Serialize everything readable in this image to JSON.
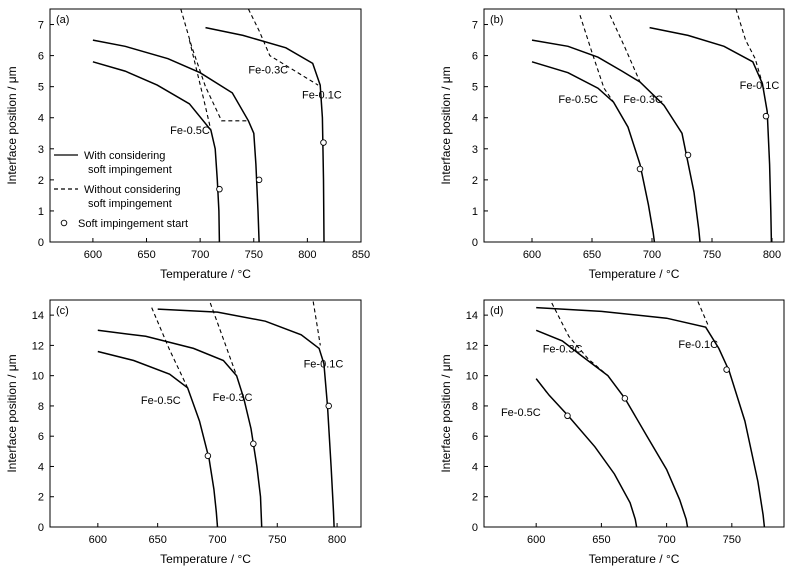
{
  "figure": {
    "background": "#ffffff",
    "line_color": "#000000"
  },
  "chart_data": [
    {
      "type": "line",
      "panel_label": "(a)",
      "xlabel": "Temperature / °C",
      "ylabel": "Interface position / μm",
      "xlim": [
        560,
        850
      ],
      "ylim": [
        0,
        7.5
      ],
      "xticks": [
        600,
        650,
        700,
        750,
        800,
        850
      ],
      "yticks": [
        0,
        1,
        2,
        3,
        4,
        5,
        6,
        7
      ],
      "legend": {
        "placement": "left",
        "entries": [
          {
            "label_lines": [
              "With considering",
              "soft impingement"
            ],
            "style": "solid"
          },
          {
            "label_lines": [
              "Without considering",
              "soft impingement"
            ],
            "style": "dashed"
          },
          {
            "label_lines": [
              "Soft impingement start"
            ],
            "style": "circle"
          }
        ]
      },
      "series": [
        {
          "name": "Fe-0.5C",
          "solid": [
            [
              600,
              5.8
            ],
            [
              630,
              5.5
            ],
            [
              660,
              5.05
            ],
            [
              690,
              4.45
            ],
            [
              710,
              3.6
            ],
            [
              714,
              3.0
            ],
            [
              716,
              2.0
            ],
            [
              717.5,
              1.0
            ],
            [
              718,
              0
            ]
          ],
          "dashed": [
            [
              690,
              6.5
            ],
            [
              697,
              5.5
            ],
            [
              704,
              4.5
            ],
            [
              710,
              3.6
            ]
          ],
          "marker": [
            718,
            1.7
          ],
          "label": {
            "text": "Fe-0.5C",
            "at": [
              672,
              3.6
            ]
          }
        },
        {
          "name": "Fe-0.3C",
          "solid": [
            [
              600,
              6.5
            ],
            [
              630,
              6.3
            ],
            [
              670,
              5.9
            ],
            [
              700,
              5.45
            ],
            [
              730,
              4.8
            ],
            [
              745,
              3.9
            ],
            [
              750,
              3.5
            ],
            [
              752,
              2.5
            ],
            [
              754,
              1.0
            ],
            [
              755,
              0
            ]
          ],
          "dashed": [
            [
              682,
              7.5
            ],
            [
              692,
              6.3
            ],
            [
              705,
              5.0
            ],
            [
              720,
              3.9
            ],
            [
              745,
              3.9
            ]
          ],
          "marker": [
            755,
            2.0
          ],
          "label": {
            "text": "Fe-0.3C",
            "at": [
              745,
              5.55
            ]
          }
        },
        {
          "name": "Fe-0.1C",
          "solid": [
            [
              705,
              6.9
            ],
            [
              740,
              6.65
            ],
            [
              780,
              6.25
            ],
            [
              805,
              5.75
            ],
            [
              812,
              5.05
            ],
            [
              814,
              4.0
            ],
            [
              815,
              2.0
            ],
            [
              815.5,
              0
            ]
          ],
          "dashed": [
            [
              745,
              7.5
            ],
            [
              755,
              6.8
            ],
            [
              765,
              6.0
            ],
            [
              810,
              5.05
            ]
          ],
          "marker": [
            815,
            3.2
          ],
          "label": {
            "text": "Fe-0.1C",
            "at": [
              795,
              4.75
            ]
          }
        }
      ]
    },
    {
      "type": "line",
      "panel_label": "(b)",
      "xlabel": "Temperature / °C",
      "ylabel": "Interface position / μm",
      "xlim": [
        560,
        810
      ],
      "ylim": [
        0,
        7.5
      ],
      "xticks": [
        600,
        650,
        700,
        750,
        800
      ],
      "yticks": [
        0,
        1,
        2,
        3,
        4,
        5,
        6,
        7
      ],
      "series": [
        {
          "name": "Fe-0.5C",
          "solid": [
            [
              600,
              5.8
            ],
            [
              630,
              5.45
            ],
            [
              655,
              4.95
            ],
            [
              668,
              4.5
            ],
            [
              680,
              3.7
            ],
            [
              690,
              2.5
            ],
            [
              697,
              1.2
            ],
            [
              701,
              0.3
            ],
            [
              702,
              0
            ]
          ],
          "dashed": [
            [
              640,
              7.3
            ],
            [
              650,
              6.1
            ],
            [
              660,
              4.95
            ],
            [
              668,
              4.5
            ]
          ],
          "marker": [
            690,
            2.35
          ],
          "label": {
            "text": "Fe-0.5C",
            "at": [
              622,
              4.6
            ]
          }
        },
        {
          "name": "Fe-0.3C",
          "solid": [
            [
              600,
              6.5
            ],
            [
              630,
              6.3
            ],
            [
              655,
              5.95
            ],
            [
              675,
              5.5
            ],
            [
              690,
              5.15
            ],
            [
              710,
              4.4
            ],
            [
              725,
              3.5
            ],
            [
              735,
              1.6
            ],
            [
              739,
              0.4
            ],
            [
              740,
              0
            ]
          ],
          "dashed": [
            [
              665,
              7.3
            ],
            [
              677,
              6.3
            ],
            [
              690,
              5.15
            ]
          ],
          "marker": [
            730,
            2.8
          ],
          "label": {
            "text": "Fe-0.3C",
            "at": [
              676,
              4.6
            ]
          }
        },
        {
          "name": "Fe-0.1C",
          "solid": [
            [
              698,
              6.9
            ],
            [
              730,
              6.65
            ],
            [
              760,
              6.3
            ],
            [
              784,
              5.8
            ],
            [
              792,
              5.1
            ],
            [
              796,
              4.2
            ],
            [
              798,
              2.5
            ],
            [
              799,
              1.0
            ],
            [
              799.5,
              0
            ]
          ],
          "dashed": [
            [
              770,
              7.5
            ],
            [
              778,
              6.5
            ],
            [
              786,
              5.9
            ],
            [
              792,
              5.1
            ]
          ],
          "marker": [
            795,
            4.05
          ],
          "label": {
            "text": "Fe-0.1C",
            "at": [
              773,
              5.05
            ]
          }
        }
      ]
    },
    {
      "type": "line",
      "panel_label": "(c)",
      "xlabel": "Temperature / °C",
      "ylabel": "Interface position / μm",
      "xlim": [
        560,
        820
      ],
      "ylim": [
        0,
        15
      ],
      "xticks": [
        600,
        650,
        700,
        750,
        800
      ],
      "yticks": [
        0,
        2,
        4,
        6,
        8,
        10,
        12,
        14
      ],
      "series": [
        {
          "name": "Fe-0.5C",
          "solid": [
            [
              600,
              11.6
            ],
            [
              630,
              11.0
            ],
            [
              660,
              10.1
            ],
            [
              675,
              9.2
            ],
            [
              685,
              7.0
            ],
            [
              693,
              4.5
            ],
            [
              697,
              2.5
            ],
            [
              699,
              1.0
            ],
            [
              700,
              0
            ]
          ],
          "dashed": [
            [
              645,
              14.5
            ],
            [
              660,
              11.7
            ],
            [
              675,
              9.2
            ]
          ],
          "marker": [
            692,
            4.7
          ],
          "label": {
            "text": "Fe-0.5C",
            "at": [
              636,
              8.4
            ]
          }
        },
        {
          "name": "Fe-0.3C",
          "solid": [
            [
              600,
              13.0
            ],
            [
              640,
              12.6
            ],
            [
              680,
              11.8
            ],
            [
              705,
              11.0
            ],
            [
              716,
              10.0
            ],
            [
              722,
              8.5
            ],
            [
              728,
              6.5
            ],
            [
              733,
              4.0
            ],
            [
              736,
              2.0
            ],
            [
              737,
              0
            ]
          ],
          "dashed": [
            [
              694,
              14.8
            ],
            [
              706,
              12.2
            ],
            [
              716,
              10.0
            ]
          ],
          "marker": [
            730,
            5.5
          ],
          "label": {
            "text": "Fe-0.3C",
            "at": [
              696,
              8.6
            ]
          }
        },
        {
          "name": "Fe-0.1C",
          "solid": [
            [
              650,
              14.4
            ],
            [
              700,
              14.2
            ],
            [
              740,
              13.6
            ],
            [
              770,
              12.7
            ],
            [
              785,
              11.8
            ],
            [
              789,
              10.8
            ],
            [
              792,
              8.0
            ],
            [
              795,
              4.0
            ],
            [
              797,
              1.0
            ],
            [
              797.5,
              0
            ]
          ],
          "dashed": [
            [
              780,
              14.9
            ],
            [
              784,
              13.0
            ],
            [
              786,
              12.0
            ]
          ],
          "marker": [
            793,
            8.0
          ],
          "label": {
            "text": "Fe-0.1C",
            "at": [
              772,
              10.8
            ]
          }
        }
      ]
    },
    {
      "type": "line",
      "panel_label": "(d)",
      "xlabel": "Temperature / °C",
      "ylabel": "Interface position / μm",
      "xlim": [
        560,
        790
      ],
      "ylim": [
        0,
        15
      ],
      "xticks": [
        600,
        650,
        700,
        750
      ],
      "yticks": [
        0,
        2,
        4,
        6,
        8,
        10,
        12,
        14
      ],
      "series": [
        {
          "name": "Fe-0.5C",
          "solid": [
            [
              600,
              9.8
            ],
            [
              610,
              8.7
            ],
            [
              625,
              7.3
            ],
            [
              645,
              5.3
            ],
            [
              660,
              3.5
            ],
            [
              672,
              1.6
            ],
            [
              676,
              0.5
            ],
            [
              677,
              0
            ]
          ],
          "dashed": [
            [
              600,
              9.8
            ],
            [
              608,
              8.9
            ]
          ],
          "marker": [
            624,
            7.35
          ],
          "label": {
            "text": "Fe-0.5C",
            "at": [
              573,
              7.6
            ]
          }
        },
        {
          "name": "Fe-0.3C",
          "solid": [
            [
              600,
              13.0
            ],
            [
              620,
              12.3
            ],
            [
              635,
              11.3
            ],
            [
              655,
              10.0
            ],
            [
              668,
              8.5
            ],
            [
              685,
              6.0
            ],
            [
              700,
              3.8
            ],
            [
              710,
              1.8
            ],
            [
              715,
              0.5
            ],
            [
              716,
              0
            ]
          ],
          "dashed": [
            [
              612,
              14.8
            ],
            [
              625,
              12.6
            ],
            [
              640,
              11.1
            ],
            [
              655,
              10.0
            ]
          ],
          "marker": [
            668,
            8.5
          ],
          "label": {
            "text": "Fe-0.3C",
            "at": [
              605,
              11.8
            ]
          }
        },
        {
          "name": "Fe-0.1C",
          "solid": [
            [
              600,
              14.5
            ],
            [
              650,
              14.25
            ],
            [
              700,
              13.8
            ],
            [
              730,
              13.2
            ],
            [
              740,
              11.8
            ],
            [
              748,
              10.3
            ],
            [
              760,
              7.0
            ],
            [
              770,
              3.0
            ],
            [
              774,
              0.8
            ],
            [
              775,
              0
            ]
          ],
          "dashed": [
            [
              724,
              14.9
            ],
            [
              732,
              13.3
            ]
          ],
          "marker": [
            746,
            10.4
          ],
          "label": {
            "text": "Fe-0.1C",
            "at": [
              709,
              12.1
            ]
          }
        }
      ]
    }
  ]
}
